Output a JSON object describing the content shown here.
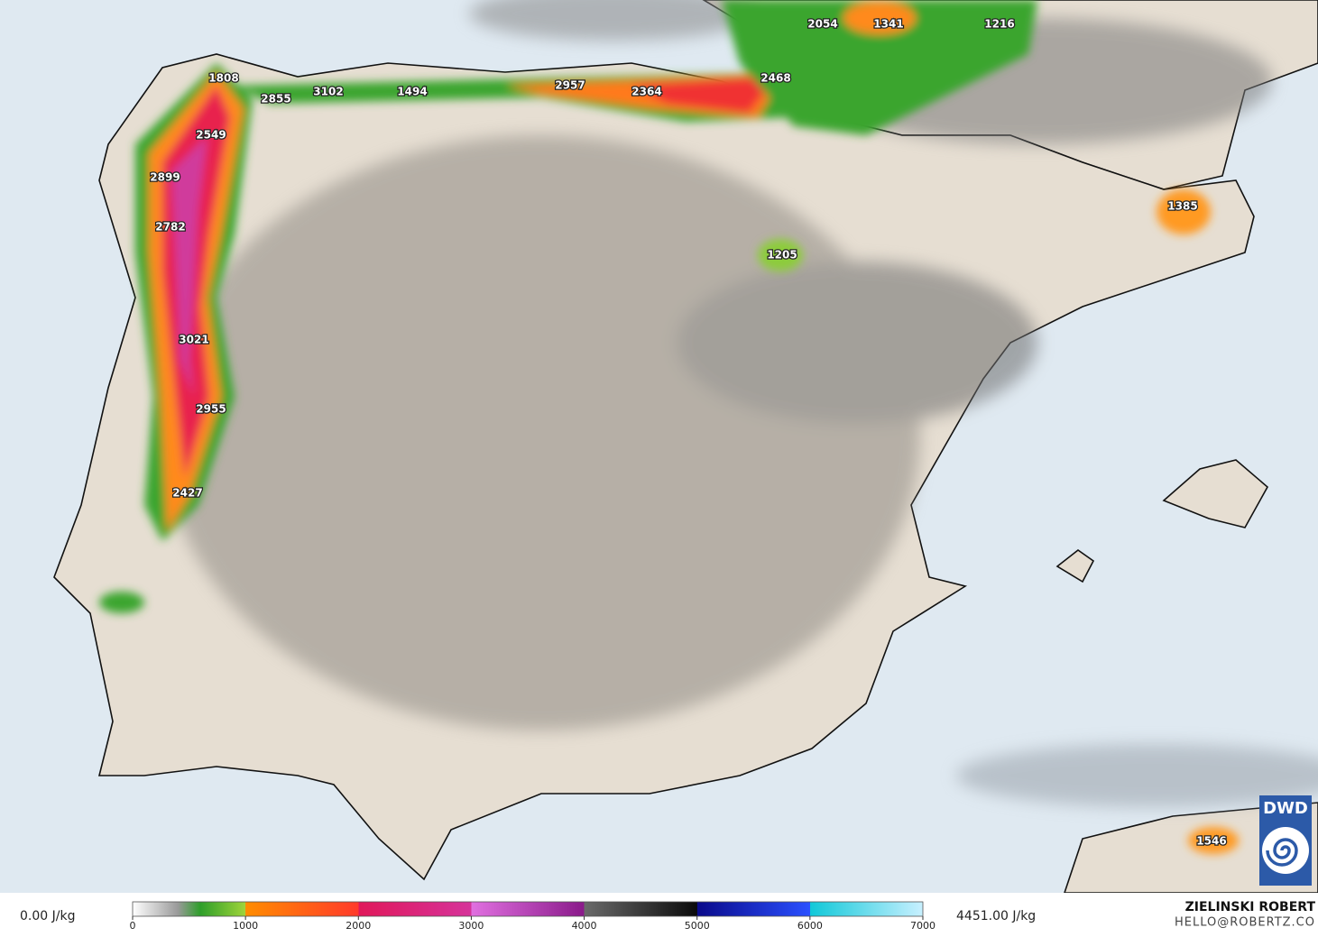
{
  "map": {
    "labels": [
      1808,
      2855,
      3102,
      1494,
      2957,
      2364,
      2468,
      2054,
      1341,
      1216,
      2549,
      2899,
      2782,
      1385,
      1205,
      3021,
      2955,
      2427,
      1546
    ],
    "colorbar": {
      "min_label": "0.00 J/kg",
      "max_label": "4451.00 J/kg",
      "range": [
        0,
        7000
      ],
      "ticks": [
        0,
        1000,
        2000,
        3000,
        4000,
        5000,
        6000,
        7000
      ],
      "stops": [
        {
          "value": 0,
          "color": "#ffffff"
        },
        {
          "value": 400,
          "color": "#9a9a9a"
        },
        {
          "value": 600,
          "color": "#2e9e2a"
        },
        {
          "value": 1000,
          "color": "#9fd43a"
        },
        {
          "value": 1001,
          "color": "#ff8c00"
        },
        {
          "value": 2000,
          "color": "#ff3a2a"
        },
        {
          "value": 2001,
          "color": "#e0185a"
        },
        {
          "value": 3000,
          "color": "#d6339a"
        },
        {
          "value": 3001,
          "color": "#e070e0"
        },
        {
          "value": 4000,
          "color": "#8a1a8a"
        },
        {
          "value": 4001,
          "color": "#6a6a6a"
        },
        {
          "value": 5000,
          "color": "#0a0a0a"
        },
        {
          "value": 5001,
          "color": "#0a0a8a"
        },
        {
          "value": 6000,
          "color": "#2a50ff"
        },
        {
          "value": 6001,
          "color": "#10c8d8"
        },
        {
          "value": 7000,
          "color": "#c8f0ff"
        }
      ]
    },
    "credit": {
      "name": "ZIELINSKI ROBERT",
      "contact": "HELLO@ROBERTZ.CO"
    },
    "logo": "DWD"
  }
}
